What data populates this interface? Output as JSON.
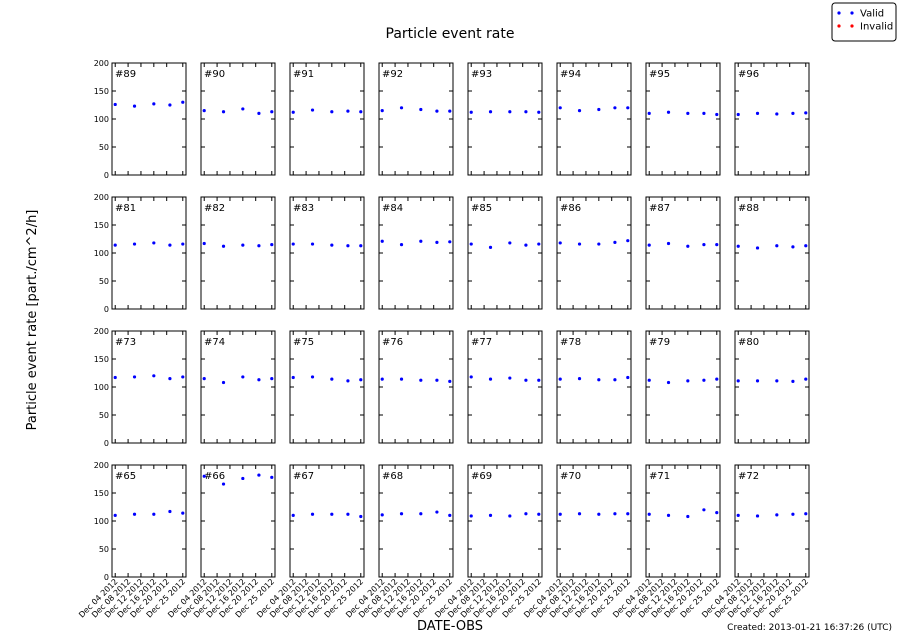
{
  "chart_data": {
    "type": "scatter-grid",
    "title": "Particle event rate",
    "y_label": "Particle event rate [part./cm^2/h]",
    "x_label": "DATE-OBS",
    "footer": "Created: 2013-01-21 16:37:26 (UTC)",
    "x": [
      "2012-12-04",
      "2012-12-10",
      "2012-12-16",
      "2012-12-21",
      "2012-12-25"
    ],
    "xlim": [
      "2012-12-03",
      "2012-12-26"
    ],
    "xticks": [
      {
        "value": "2012-12-04",
        "label": "Dec 04 2012"
      },
      {
        "value": "2012-12-08",
        "label": "Dec 08 2012"
      },
      {
        "value": "2012-12-12",
        "label": "Dec 12 2012"
      },
      {
        "value": "2012-12-16",
        "label": "Dec 16 2012"
      },
      {
        "value": "2012-12-20",
        "label": "Dec 20 2012"
      },
      {
        "value": "2012-12-25",
        "label": "Dec 25 2012"
      }
    ],
    "ylim": [
      0,
      200
    ],
    "yticks": [
      0,
      50,
      100,
      150,
      200
    ],
    "legend": "upper right",
    "series": [
      {
        "name": "Valid",
        "color": "#0000ff"
      },
      {
        "name": "Invalid",
        "color": "#ff0000"
      }
    ],
    "panels": [
      {
        "label": "#89",
        "values": [
          126,
          123,
          127,
          125,
          130
        ]
      },
      {
        "label": "#90",
        "values": [
          115,
          113,
          118,
          110,
          113
        ]
      },
      {
        "label": "#91",
        "values": [
          112,
          116,
          113,
          114,
          113
        ]
      },
      {
        "label": "#92",
        "values": [
          115,
          120,
          117,
          114,
          114
        ]
      },
      {
        "label": "#93",
        "values": [
          112,
          113,
          113,
          113,
          112
        ]
      },
      {
        "label": "#94",
        "values": [
          120,
          115,
          117,
          120,
          120
        ]
      },
      {
        "label": "#95",
        "values": [
          110,
          112,
          110,
          110,
          108
        ]
      },
      {
        "label": "#96",
        "values": [
          108,
          110,
          109,
          110,
          111
        ]
      },
      {
        "label": "#81",
        "values": [
          114,
          116,
          118,
          114,
          116
        ]
      },
      {
        "label": "#82",
        "values": [
          117,
          112,
          114,
          113,
          115
        ]
      },
      {
        "label": "#83",
        "values": [
          116,
          116,
          114,
          113,
          113
        ]
      },
      {
        "label": "#84",
        "values": [
          121,
          115,
          121,
          119,
          120
        ]
      },
      {
        "label": "#85",
        "values": [
          116,
          110,
          118,
          114,
          116
        ]
      },
      {
        "label": "#86",
        "values": [
          118,
          116,
          116,
          119,
          122
        ]
      },
      {
        "label": "#87",
        "values": [
          114,
          117,
          112,
          115,
          115
        ]
      },
      {
        "label": "#88",
        "values": [
          112,
          109,
          113,
          111,
          113
        ]
      },
      {
        "label": "#73",
        "values": [
          117,
          118,
          120,
          115,
          118
        ]
      },
      {
        "label": "#74",
        "values": [
          115,
          108,
          118,
          113,
          115
        ]
      },
      {
        "label": "#75",
        "values": [
          117,
          118,
          114,
          111,
          113
        ]
      },
      {
        "label": "#76",
        "values": [
          114,
          114,
          112,
          112,
          110
        ]
      },
      {
        "label": "#77",
        "values": [
          118,
          114,
          116,
          112,
          112
        ]
      },
      {
        "label": "#78",
        "values": [
          114,
          115,
          113,
          113,
          117
        ]
      },
      {
        "label": "#79",
        "values": [
          112,
          108,
          111,
          112,
          114
        ]
      },
      {
        "label": "#80",
        "values": [
          111,
          111,
          111,
          110,
          114
        ]
      },
      {
        "label": "#65",
        "values": [
          110,
          112,
          112,
          117,
          114
        ]
      },
      {
        "label": "#66",
        "values": [
          180,
          166,
          176,
          182,
          178
        ]
      },
      {
        "label": "#67",
        "values": [
          110,
          112,
          112,
          112,
          108
        ]
      },
      {
        "label": "#68",
        "values": [
          111,
          113,
          113,
          116,
          110
        ]
      },
      {
        "label": "#69",
        "values": [
          109,
          110,
          109,
          113,
          112
        ]
      },
      {
        "label": "#70",
        "values": [
          112,
          113,
          112,
          113,
          113
        ]
      },
      {
        "label": "#71",
        "values": [
          112,
          110,
          108,
          120,
          115
        ]
      },
      {
        "label": "#72",
        "values": [
          110,
          109,
          111,
          112,
          113
        ]
      }
    ]
  }
}
